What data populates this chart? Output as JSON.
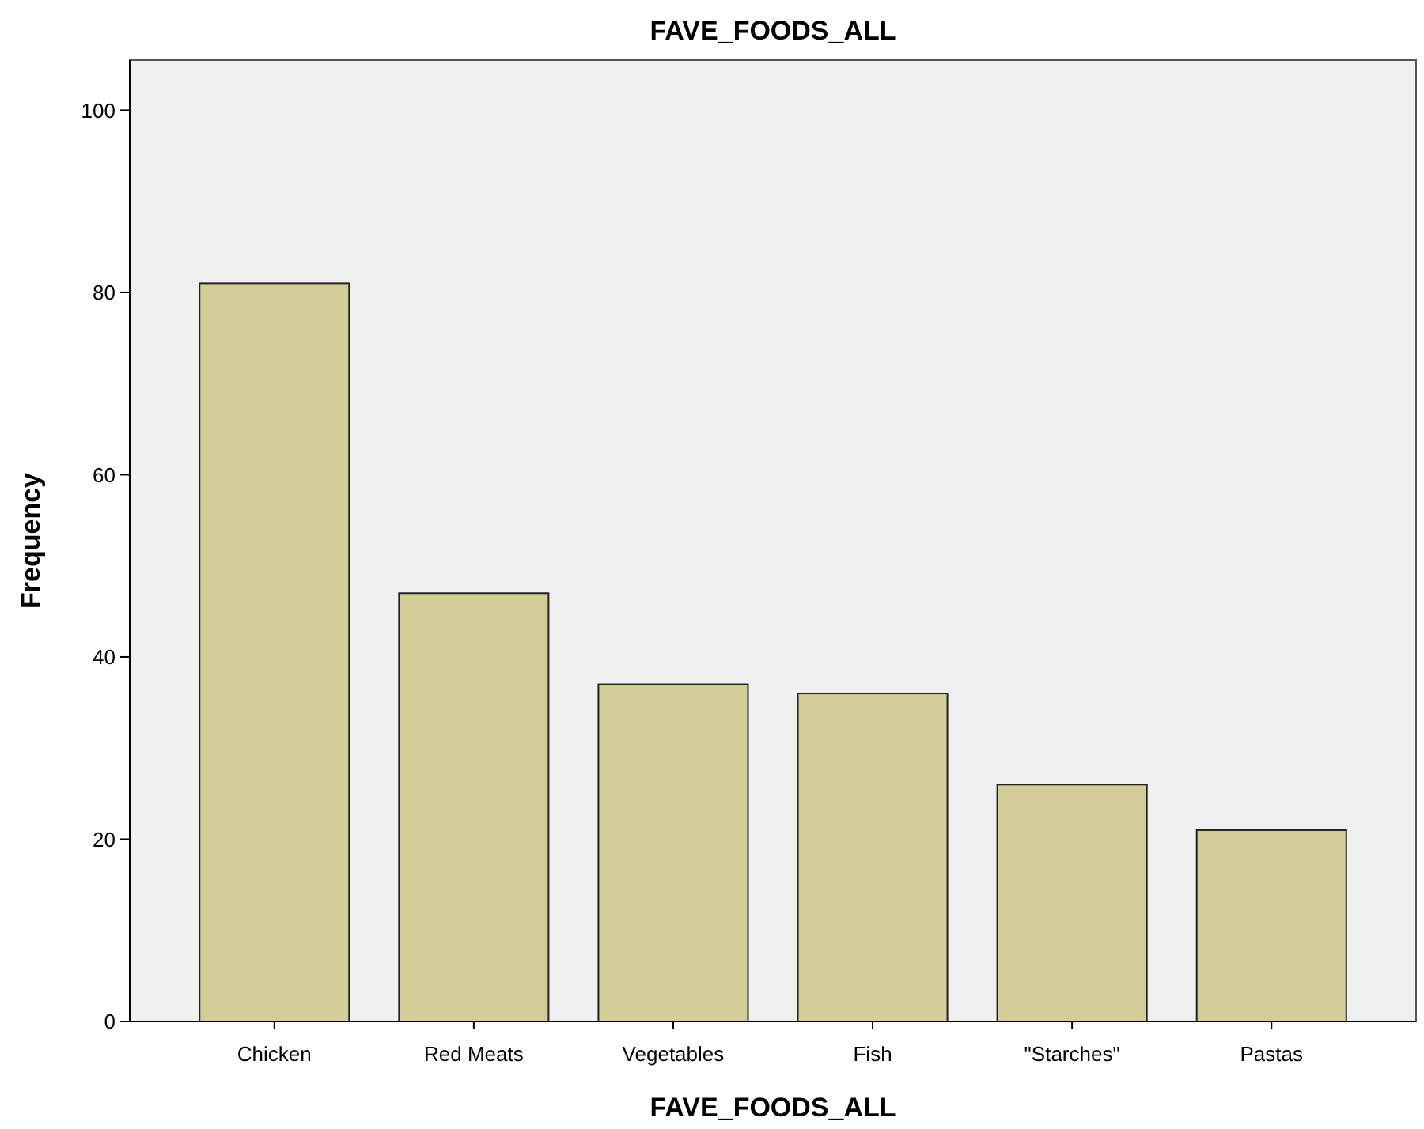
{
  "chart_data": {
    "type": "bar",
    "title": "FAVE_FOODS_ALL",
    "xlabel": "FAVE_FOODS_ALL",
    "ylabel": "Frequency",
    "categories": [
      "Chicken",
      "Red Meats",
      "Vegetables",
      "Fish",
      "\"Starches\"",
      "Pastas"
    ],
    "values": [
      81,
      47,
      37,
      36,
      26,
      21
    ],
    "color": "#d3ce97",
    "ylim": [
      0,
      105.5
    ],
    "yticks": [
      0,
      20,
      40,
      60,
      80,
      100
    ],
    "grid": false
  }
}
